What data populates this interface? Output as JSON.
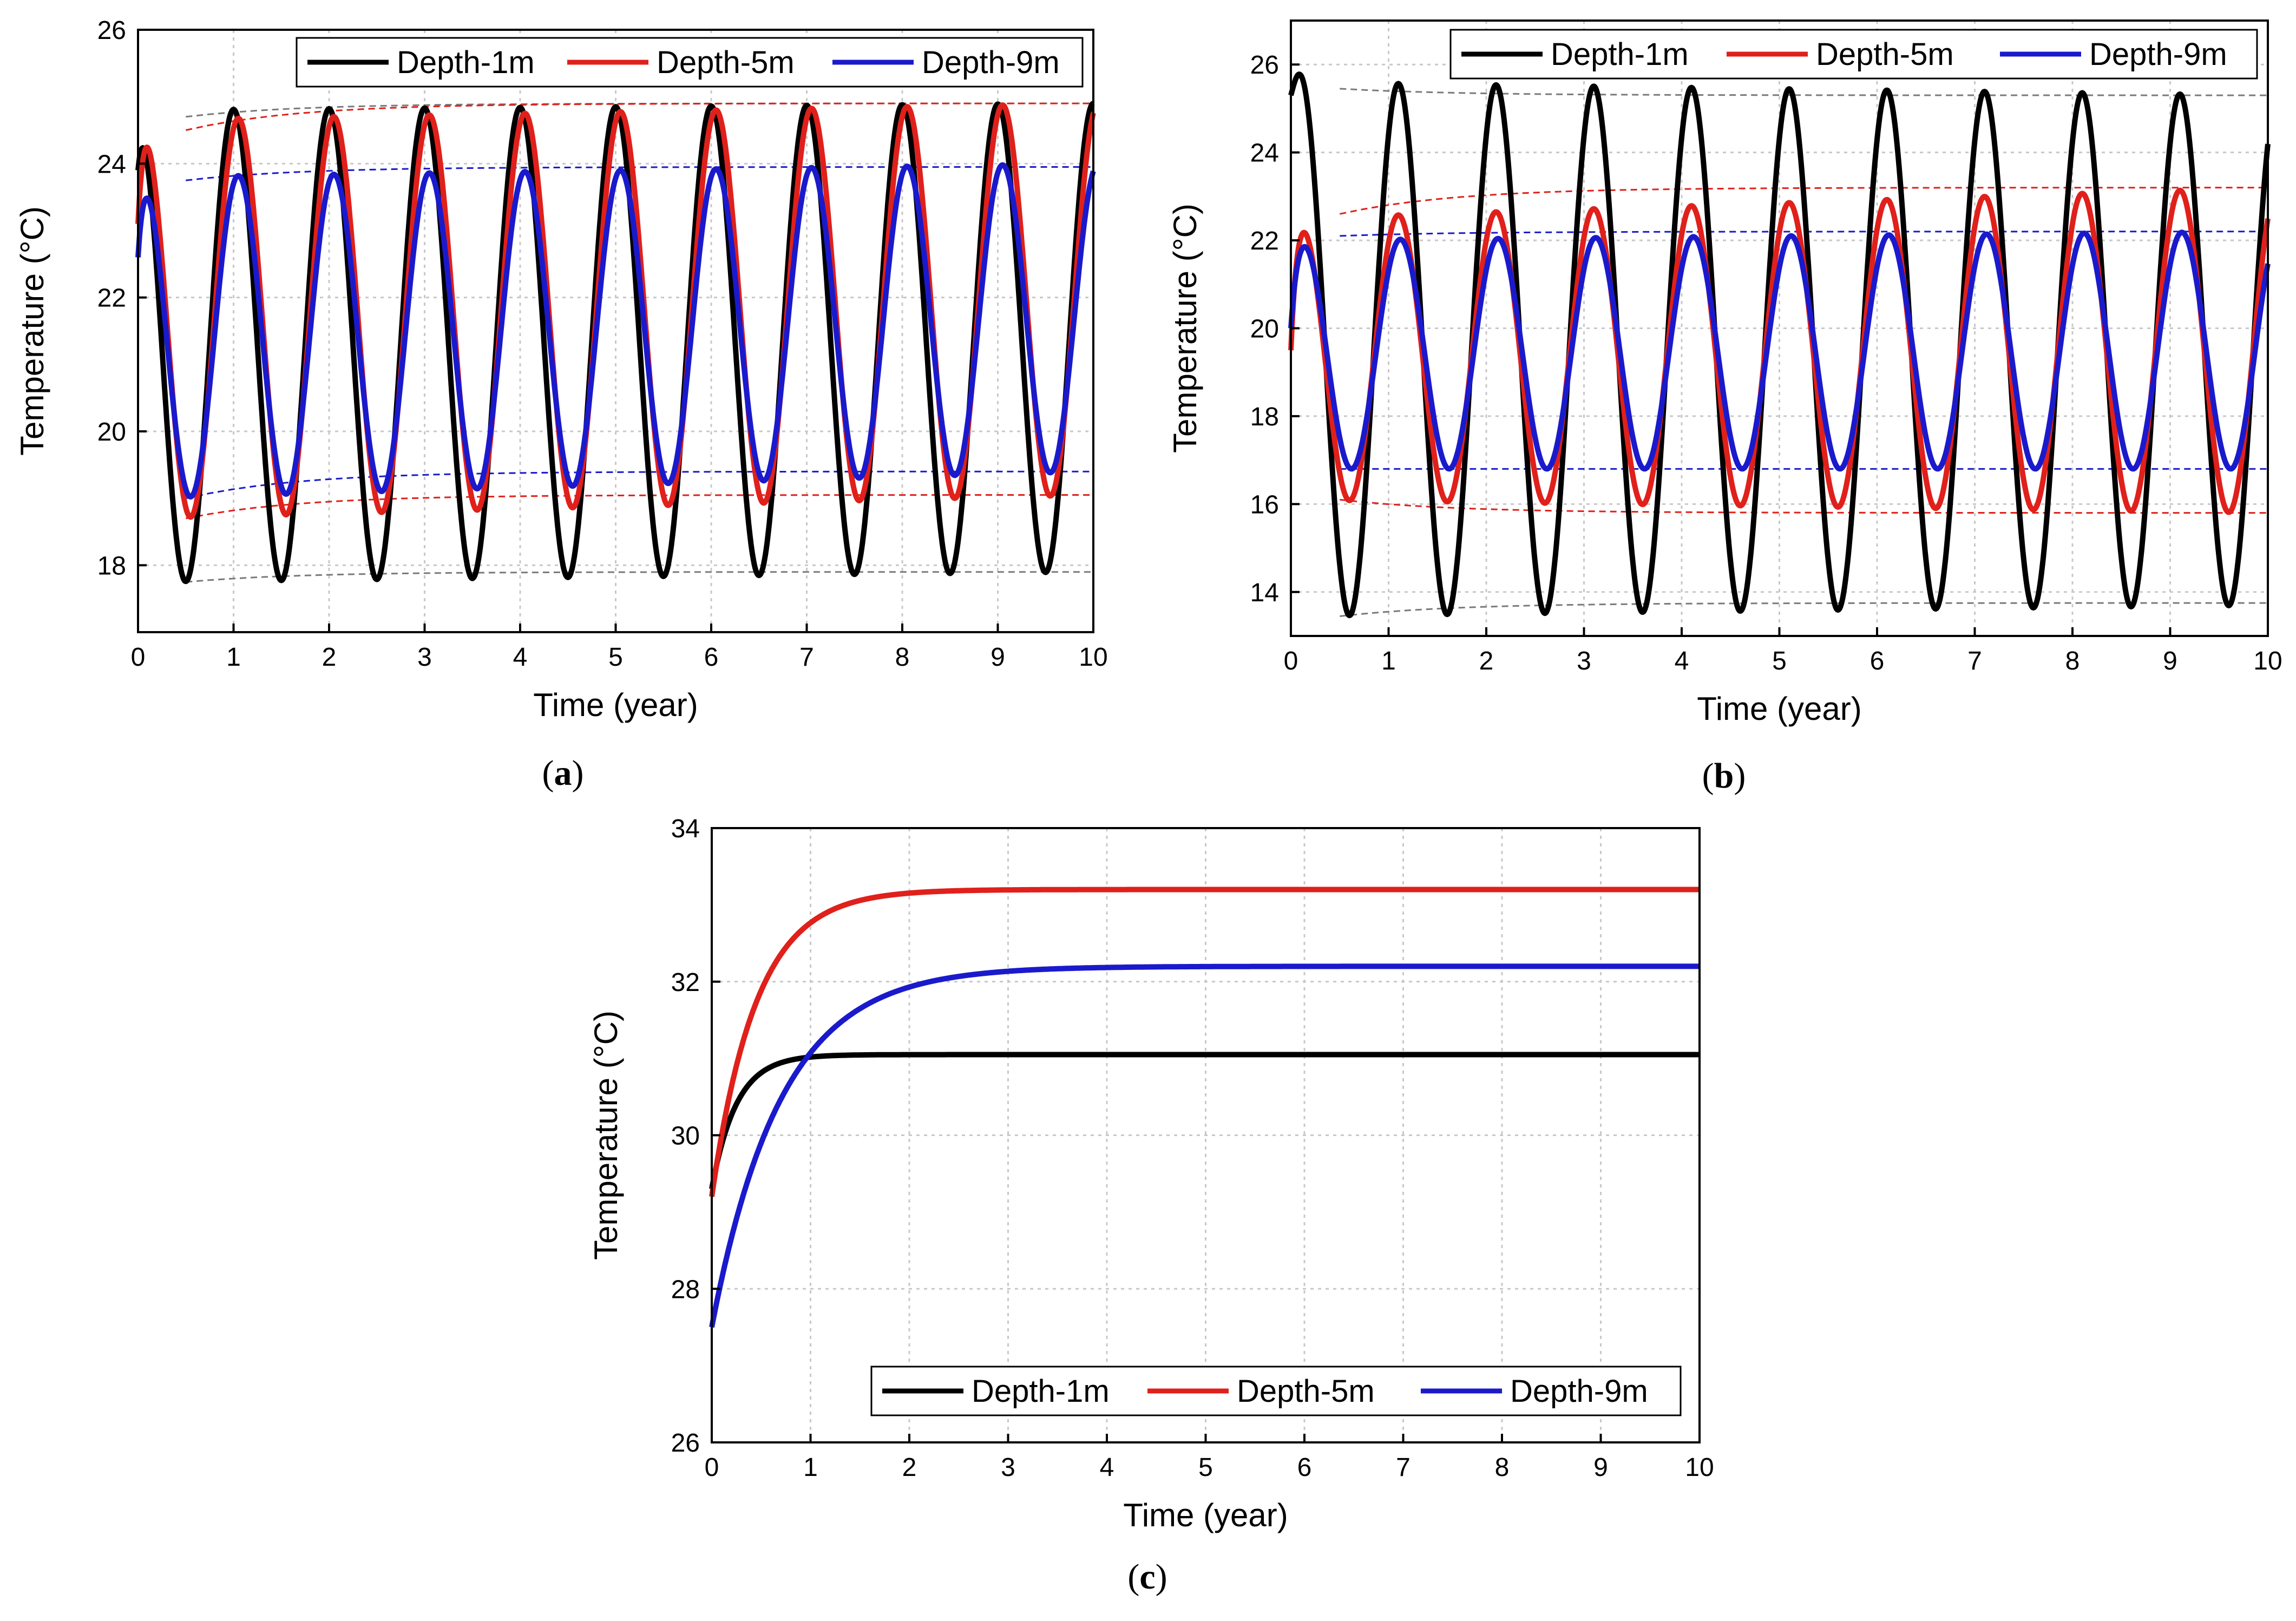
{
  "colors": {
    "depth1": "#000000",
    "depth5": "#e0201b",
    "depth9": "#1a1acc",
    "env_grey": "#7a7a7a",
    "grid": "#c8c8c8"
  },
  "chart_data": [
    {
      "panel": "a",
      "type": "line",
      "caption_letter": "a",
      "xlabel": "Time (year)",
      "ylabel": "Temperature (°C)",
      "xlim": [
        0,
        10
      ],
      "ylim": [
        17,
        26
      ],
      "xticks": [
        0,
        1,
        2,
        3,
        4,
        5,
        6,
        7,
        8,
        9,
        10
      ],
      "yticks": [
        18,
        20,
        22,
        24,
        26
      ],
      "legend": [
        "Depth-1m",
        "Depth-5m",
        "Depth-9m"
      ],
      "legend_position": "top-right",
      "series": [
        {
          "name": "Depth-1m",
          "shape": "periodic",
          "start": 23.9,
          "peak_day": 0.0,
          "max_early": 24.8,
          "max_late": 24.9,
          "min_early": 17.75,
          "min_late": 17.9,
          "color_key": "depth1"
        },
        {
          "name": "Depth-5m",
          "shape": "periodic",
          "start": 23.1,
          "peak_day": 0.05,
          "max_early": 24.65,
          "max_late": 24.9,
          "min_early": 18.7,
          "min_late": 19.05,
          "color_key": "depth5"
        },
        {
          "name": "Depth-9m",
          "shape": "periodic",
          "start": 22.6,
          "peak_day": 0.05,
          "max_early": 23.8,
          "max_late": 24.0,
          "min_early": 19.0,
          "min_late": 19.4,
          "color_key": "depth9"
        }
      ],
      "envelopes": [
        {
          "color_key": "env_grey",
          "start": 24.7,
          "end": 24.9
        },
        {
          "color_key": "env_grey",
          "start": 17.75,
          "end": 17.9
        },
        {
          "color_key": "depth5",
          "start": 24.5,
          "end": 24.9
        },
        {
          "color_key": "depth5",
          "start": 18.7,
          "end": 19.05
        },
        {
          "color_key": "depth9",
          "start": 23.75,
          "end": 23.95
        },
        {
          "color_key": "depth9",
          "start": 19.0,
          "end": 19.4
        }
      ]
    },
    {
      "panel": "b",
      "type": "line",
      "caption_letter": "b",
      "xlabel": "Time (year)",
      "ylabel": "Temperature (°C)",
      "xlim": [
        0,
        10
      ],
      "ylim": [
        13,
        27
      ],
      "xticks": [
        0,
        1,
        2,
        3,
        4,
        5,
        6,
        7,
        8,
        9,
        10
      ],
      "yticks": [
        14,
        16,
        18,
        20,
        22,
        24,
        26
      ],
      "legend": [
        "Depth-1m",
        "Depth-5m",
        "Depth-9m"
      ],
      "legend_position": "top-right",
      "series": [
        {
          "name": "Depth-1m",
          "shape": "periodic",
          "start": 25.3,
          "peak_day": 0.1,
          "max_early": 25.6,
          "max_late": 25.3,
          "min_early": 13.45,
          "min_late": 13.7,
          "color_key": "depth1"
        },
        {
          "name": "Depth-5m",
          "shape": "periodic",
          "start": 19.5,
          "peak_day": 0.1,
          "max_early": 22.5,
          "max_late": 23.2,
          "min_early": 16.1,
          "min_late": 15.8,
          "color_key": "depth5"
        },
        {
          "name": "Depth-9m",
          "shape": "periodic",
          "start": 20.0,
          "peak_day": 0.12,
          "max_early": 22.0,
          "max_late": 22.2,
          "min_early": 16.8,
          "min_late": 16.8,
          "color_key": "depth9"
        }
      ],
      "envelopes": [
        {
          "color_key": "env_grey",
          "start": 25.45,
          "end": 25.3
        },
        {
          "color_key": "env_grey",
          "start": 13.45,
          "end": 13.75
        },
        {
          "color_key": "depth5",
          "start": 22.6,
          "end": 23.2
        },
        {
          "color_key": "depth5",
          "start": 16.1,
          "end": 15.8
        },
        {
          "color_key": "depth9",
          "start": 22.1,
          "end": 22.2
        },
        {
          "color_key": "depth9",
          "start": 16.8,
          "end": 16.8
        }
      ]
    },
    {
      "panel": "c",
      "type": "line",
      "caption_letter": "c",
      "xlabel": "Time (year)",
      "ylabel": "Temperature (°C)",
      "xlim": [
        0,
        10
      ],
      "ylim": [
        26,
        34
      ],
      "xticks": [
        0,
        1,
        2,
        3,
        4,
        5,
        6,
        7,
        8,
        9,
        10
      ],
      "yticks": [
        26,
        28,
        30,
        32,
        34
      ],
      "legend": [
        "Depth-1m",
        "Depth-5m",
        "Depth-9m"
      ],
      "legend_position": "bottom-right",
      "series": [
        {
          "name": "Depth-1m",
          "shape": "saturating",
          "start": 29.3,
          "end": 31.05,
          "tau": 0.25,
          "color_key": "depth1"
        },
        {
          "name": "Depth-5m",
          "shape": "saturating",
          "start": 29.2,
          "end": 33.2,
          "tau": 0.45,
          "color_key": "depth5"
        },
        {
          "name": "Depth-9m",
          "shape": "saturating",
          "start": 27.5,
          "end": 32.2,
          "tau": 0.7,
          "color_key": "depth9"
        }
      ]
    }
  ]
}
